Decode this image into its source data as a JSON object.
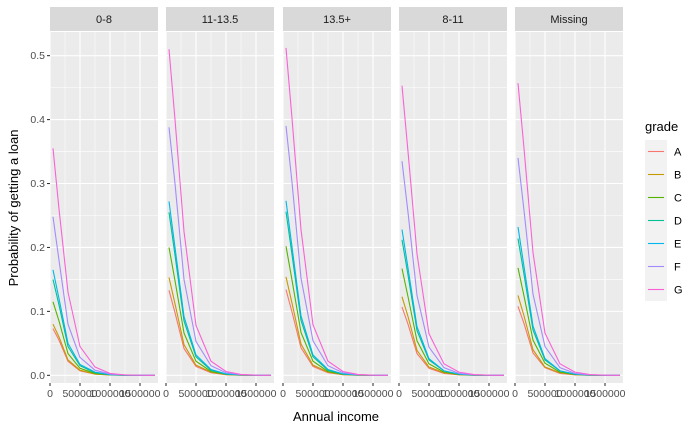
{
  "chart_data": {
    "type": "line",
    "facet_variable": "emp_length",
    "facets": [
      "0-8",
      "11-13.5",
      "13.5+",
      "8-11",
      "Missing"
    ],
    "xlabel": "Annual income",
    "ylabel": "Probability of getting a loan",
    "xlim": [
      0,
      1800000
    ],
    "ylim": [
      -0.012,
      0.537
    ],
    "x_ticks": [
      0,
      500000,
      1000000,
      1500000
    ],
    "x_tick_labels": [
      "0",
      "500000",
      "1000000",
      "1500000"
    ],
    "y_ticks": [
      0,
      0.1,
      0.2,
      0.3,
      0.4,
      0.5
    ],
    "y_tick_labels": [
      "0.0",
      "0.1",
      "0.2",
      "0.3",
      "0.4",
      "0.5"
    ],
    "grid": true,
    "legend": {
      "title": "grade",
      "position": "right",
      "entries": [
        "A",
        "B",
        "C",
        "D",
        "E",
        "F",
        "G"
      ]
    },
    "colors": {
      "A": "#F8766D",
      "B": "#C49A00",
      "C": "#53B400",
      "D": "#00C094",
      "E": "#00B6EB",
      "F": "#A58AFF",
      "G": "#FB61D7"
    },
    "x": [
      50000,
      150000,
      300000,
      500000,
      750000,
      1000000,
      1250000,
      1500000,
      1750000
    ],
    "panels": [
      {
        "facet": "0-8",
        "series": [
          {
            "name": "A",
            "values": [
              0.073,
              0.055,
              0.022,
              0.007,
              0.002,
              0.0005,
              0.0001,
              0.0,
              0.0
            ]
          },
          {
            "name": "B",
            "values": [
              0.08,
              0.06,
              0.024,
              0.008,
              0.002,
              0.0005,
              0.0001,
              0.0,
              0.0
            ]
          },
          {
            "name": "C",
            "values": [
              0.115,
              0.085,
              0.034,
              0.011,
              0.003,
              0.0008,
              0.0002,
              0.0,
              0.0
            ]
          },
          {
            "name": "D",
            "values": [
              0.15,
              0.11,
              0.045,
              0.015,
              0.004,
              0.001,
              0.0002,
              0.0,
              0.0
            ]
          },
          {
            "name": "E",
            "values": [
              0.165,
              0.12,
              0.05,
              0.017,
              0.005,
              0.0012,
              0.0003,
              0.0,
              0.0
            ]
          },
          {
            "name": "F",
            "values": [
              0.248,
              0.18,
              0.08,
              0.028,
              0.008,
              0.002,
              0.0005,
              0.0001,
              0.0
            ]
          },
          {
            "name": "G",
            "values": [
              0.355,
              0.26,
              0.13,
              0.045,
              0.013,
              0.003,
              0.0007,
              0.0001,
              0.0
            ]
          }
        ]
      },
      {
        "facet": "11-13.5",
        "series": [
          {
            "name": "A",
            "values": [
              0.133,
              0.098,
              0.042,
              0.014,
              0.004,
              0.001,
              0.0002,
              0.0,
              0.0
            ]
          },
          {
            "name": "B",
            "values": [
              0.153,
              0.112,
              0.048,
              0.016,
              0.005,
              0.0012,
              0.0003,
              0.0,
              0.0
            ]
          },
          {
            "name": "C",
            "values": [
              0.2,
              0.148,
              0.066,
              0.022,
              0.006,
              0.0016,
              0.0004,
              0.0001,
              0.0
            ]
          },
          {
            "name": "D",
            "values": [
              0.255,
              0.188,
              0.085,
              0.029,
              0.008,
              0.002,
              0.0005,
              0.0001,
              0.0
            ]
          },
          {
            "name": "E",
            "values": [
              0.272,
              0.2,
              0.092,
              0.032,
              0.009,
              0.0023,
              0.0005,
              0.0001,
              0.0
            ]
          },
          {
            "name": "F",
            "values": [
              0.388,
              0.3,
              0.15,
              0.053,
              0.015,
              0.004,
              0.001,
              0.0002,
              0.0
            ]
          },
          {
            "name": "G",
            "values": [
              0.51,
              0.4,
              0.225,
              0.078,
              0.022,
              0.006,
              0.0014,
              0.0003,
              0.0
            ]
          }
        ]
      },
      {
        "facet": "13.5+",
        "series": [
          {
            "name": "A",
            "values": [
              0.134,
              0.099,
              0.043,
              0.014,
              0.004,
              0.001,
              0.0002,
              0.0,
              0.0
            ]
          },
          {
            "name": "B",
            "values": [
              0.154,
              0.113,
              0.049,
              0.016,
              0.005,
              0.0012,
              0.0003,
              0.0,
              0.0
            ]
          },
          {
            "name": "C",
            "values": [
              0.202,
              0.149,
              0.067,
              0.022,
              0.006,
              0.0016,
              0.0004,
              0.0001,
              0.0
            ]
          },
          {
            "name": "D",
            "values": [
              0.256,
              0.189,
              0.086,
              0.029,
              0.008,
              0.002,
              0.0005,
              0.0001,
              0.0
            ]
          },
          {
            "name": "E",
            "values": [
              0.273,
              0.201,
              0.093,
              0.032,
              0.009,
              0.0023,
              0.0005,
              0.0001,
              0.0
            ]
          },
          {
            "name": "F",
            "values": [
              0.39,
              0.302,
              0.152,
              0.054,
              0.015,
              0.004,
              0.001,
              0.0002,
              0.0
            ]
          },
          {
            "name": "G",
            "values": [
              0.512,
              0.402,
              0.228,
              0.079,
              0.022,
              0.006,
              0.0014,
              0.0003,
              0.0
            ]
          }
        ]
      },
      {
        "facet": "8-11",
        "series": [
          {
            "name": "A",
            "values": [
              0.107,
              0.08,
              0.034,
              0.011,
              0.003,
              0.0008,
              0.0002,
              0.0,
              0.0
            ]
          },
          {
            "name": "B",
            "values": [
              0.123,
              0.092,
              0.039,
              0.013,
              0.004,
              0.0009,
              0.0002,
              0.0,
              0.0
            ]
          },
          {
            "name": "C",
            "values": [
              0.167,
              0.123,
              0.054,
              0.018,
              0.005,
              0.0013,
              0.0003,
              0.0,
              0.0
            ]
          },
          {
            "name": "D",
            "values": [
              0.212,
              0.157,
              0.07,
              0.024,
              0.007,
              0.0017,
              0.0004,
              0.0001,
              0.0
            ]
          },
          {
            "name": "E",
            "values": [
              0.228,
              0.168,
              0.076,
              0.026,
              0.007,
              0.0019,
              0.0004,
              0.0001,
              0.0
            ]
          },
          {
            "name": "F",
            "values": [
              0.335,
              0.255,
              0.125,
              0.044,
              0.012,
              0.003,
              0.0008,
              0.0002,
              0.0
            ]
          },
          {
            "name": "G",
            "values": [
              0.453,
              0.35,
              0.19,
              0.065,
              0.018,
              0.005,
              0.0012,
              0.0003,
              0.0
            ]
          }
        ]
      },
      {
        "facet": "Missing",
        "series": [
          {
            "name": "A",
            "values": [
              0.108,
              0.081,
              0.035,
              0.012,
              0.003,
              0.0008,
              0.0002,
              0.0,
              0.0
            ]
          },
          {
            "name": "B",
            "values": [
              0.125,
              0.093,
              0.04,
              0.013,
              0.004,
              0.0009,
              0.0002,
              0.0,
              0.0
            ]
          },
          {
            "name": "C",
            "values": [
              0.168,
              0.124,
              0.055,
              0.019,
              0.005,
              0.0013,
              0.0003,
              0.0,
              0.0
            ]
          },
          {
            "name": "D",
            "values": [
              0.214,
              0.158,
              0.071,
              0.024,
              0.007,
              0.0017,
              0.0004,
              0.0001,
              0.0
            ]
          },
          {
            "name": "E",
            "values": [
              0.232,
              0.17,
              0.077,
              0.026,
              0.007,
              0.0019,
              0.0004,
              0.0001,
              0.0
            ]
          },
          {
            "name": "F",
            "values": [
              0.34,
              0.258,
              0.127,
              0.045,
              0.012,
              0.003,
              0.0008,
              0.0002,
              0.0
            ]
          },
          {
            "name": "G",
            "values": [
              0.457,
              0.355,
              0.192,
              0.066,
              0.018,
              0.005,
              0.0012,
              0.0003,
              0.0
            ]
          }
        ]
      }
    ]
  }
}
